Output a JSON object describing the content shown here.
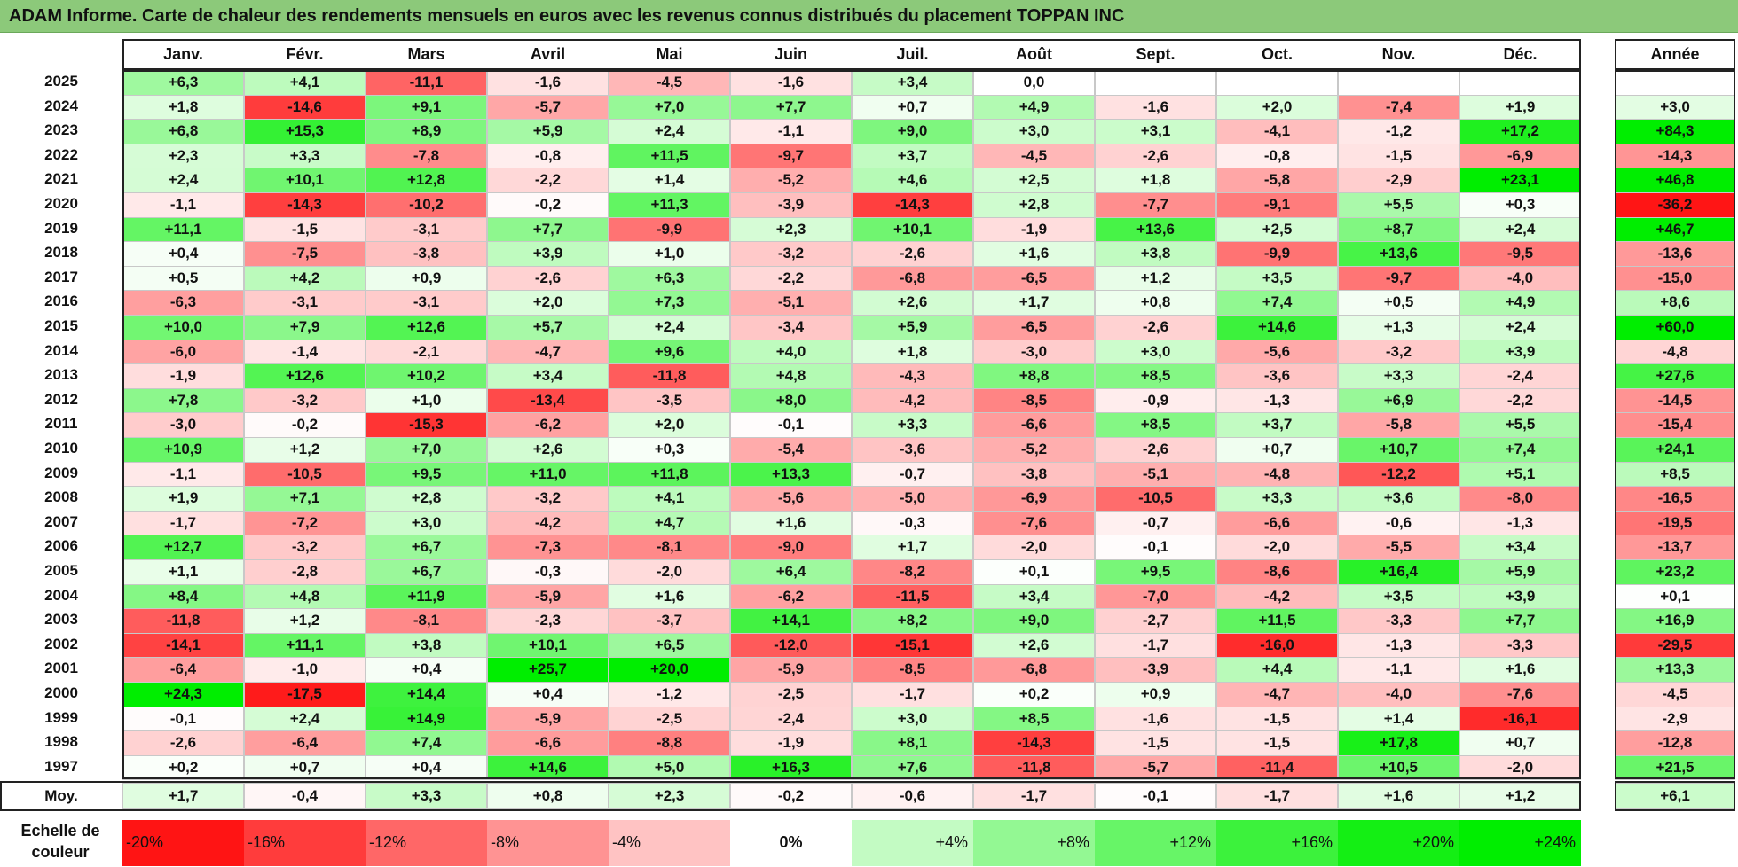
{
  "title": "ADAM Informe. Carte de chaleur des rendements mensuels en euros avec les revenus connus distribués du placement TOPPAN INC",
  "months": [
    "Janv.",
    "Févr.",
    "Mars",
    "Avril",
    "Mai",
    "Juin",
    "Juil.",
    "Août",
    "Sept.",
    "Oct.",
    "Nov.",
    "Déc."
  ],
  "year_header": "Année",
  "average_label": "Moy.",
  "scale_label": [
    "Echelle de",
    "couleur"
  ],
  "colors": {
    "negative": "#ff0000",
    "neutral": "#ffffff",
    "positive": "#00ee00",
    "title_bg": "#8cc97a"
  },
  "chart_data": {
    "type": "heatmap",
    "title": "ADAM Informe. Carte de chaleur des rendements mensuels en euros avec les revenus connus distribués du placement TOPPAN INC",
    "x": [
      "Janv.",
      "Févr.",
      "Mars",
      "Avril",
      "Mai",
      "Juin",
      "Juil.",
      "Août",
      "Sept.",
      "Oct.",
      "Nov.",
      "Déc."
    ],
    "rows": [
      {
        "year": "2025",
        "values": [
          "+6,3",
          "+4,1",
          "-11,1",
          "-1,6",
          "-4,5",
          "-1,6",
          "+3,4",
          "0,0",
          "",
          "",
          "",
          ""
        ],
        "annual": ""
      },
      {
        "year": "2024",
        "values": [
          "+1,8",
          "-14,6",
          "+9,1",
          "-5,7",
          "+7,0",
          "+7,7",
          "+0,7",
          "+4,9",
          "-1,6",
          "+2,0",
          "-7,4",
          "+1,9"
        ],
        "annual": "+3,0"
      },
      {
        "year": "2023",
        "values": [
          "+6,8",
          "+15,3",
          "+8,9",
          "+5,9",
          "+2,4",
          "-1,1",
          "+9,0",
          "+3,0",
          "+3,1",
          "-4,1",
          "-1,2",
          "+17,2"
        ],
        "annual": "+84,3"
      },
      {
        "year": "2022",
        "values": [
          "+2,3",
          "+3,3",
          "-7,8",
          "-0,8",
          "+11,5",
          "-9,7",
          "+3,7",
          "-4,5",
          "-2,6",
          "-0,8",
          "-1,5",
          "-6,9"
        ],
        "annual": "-14,3"
      },
      {
        "year": "2021",
        "values": [
          "+2,4",
          "+10,1",
          "+12,8",
          "-2,2",
          "+1,4",
          "-5,2",
          "+4,6",
          "+2,5",
          "+1,8",
          "-5,8",
          "-2,9",
          "+23,1"
        ],
        "annual": "+46,8"
      },
      {
        "year": "2020",
        "values": [
          "-1,1",
          "-14,3",
          "-10,2",
          "-0,2",
          "+11,3",
          "-3,9",
          "-14,3",
          "+2,8",
          "-7,7",
          "-9,1",
          "+5,5",
          "+0,3"
        ],
        "annual": "-36,2"
      },
      {
        "year": "2019",
        "values": [
          "+11,1",
          "-1,5",
          "-3,1",
          "+7,7",
          "-9,9",
          "+2,3",
          "+10,1",
          "-1,9",
          "+13,6",
          "+2,5",
          "+8,7",
          "+2,4"
        ],
        "annual": "+46,7"
      },
      {
        "year": "2018",
        "values": [
          "+0,4",
          "-7,5",
          "-3,8",
          "+3,9",
          "+1,0",
          "-3,2",
          "-2,6",
          "+1,6",
          "+3,8",
          "-9,9",
          "+13,6",
          "-9,5"
        ],
        "annual": "-13,6"
      },
      {
        "year": "2017",
        "values": [
          "+0,5",
          "+4,2",
          "+0,9",
          "-2,6",
          "+6,3",
          "-2,2",
          "-6,8",
          "-6,5",
          "+1,2",
          "+3,5",
          "-9,7",
          "-4,0"
        ],
        "annual": "-15,0"
      },
      {
        "year": "2016",
        "values": [
          "-6,3",
          "-3,1",
          "-3,1",
          "+2,0",
          "+7,3",
          "-5,1",
          "+2,6",
          "+1,7",
          "+0,8",
          "+7,4",
          "+0,5",
          "+4,9"
        ],
        "annual": "+8,6"
      },
      {
        "year": "2015",
        "values": [
          "+10,0",
          "+7,9",
          "+12,6",
          "+5,7",
          "+2,4",
          "-3,4",
          "+5,9",
          "-6,5",
          "-2,6",
          "+14,6",
          "+1,3",
          "+2,4"
        ],
        "annual": "+60,0"
      },
      {
        "year": "2014",
        "values": [
          "-6,0",
          "-1,4",
          "-2,1",
          "-4,7",
          "+9,6",
          "+4,0",
          "+1,8",
          "-3,0",
          "+3,0",
          "-5,6",
          "-3,2",
          "+3,9"
        ],
        "annual": "-4,8"
      },
      {
        "year": "2013",
        "values": [
          "-1,9",
          "+12,6",
          "+10,2",
          "+3,4",
          "-11,8",
          "+4,8",
          "-4,3",
          "+8,8",
          "+8,5",
          "-3,6",
          "+3,3",
          "-2,4"
        ],
        "annual": "+27,6"
      },
      {
        "year": "2012",
        "values": [
          "+7,8",
          "-3,2",
          "+1,0",
          "-13,4",
          "-3,5",
          "+8,0",
          "-4,2",
          "-8,5",
          "-0,9",
          "-1,3",
          "+6,9",
          "-2,2"
        ],
        "annual": "-14,5"
      },
      {
        "year": "2011",
        "values": [
          "-3,0",
          "-0,2",
          "-15,3",
          "-6,2",
          "+2,0",
          "-0,1",
          "+3,3",
          "-6,6",
          "+8,5",
          "+3,7",
          "-5,8",
          "+5,5"
        ],
        "annual": "-15,4"
      },
      {
        "year": "2010",
        "values": [
          "+10,9",
          "+1,2",
          "+7,0",
          "+2,6",
          "+0,3",
          "-5,4",
          "-3,6",
          "-5,2",
          "-2,6",
          "+0,7",
          "+10,7",
          "+7,4"
        ],
        "annual": "+24,1"
      },
      {
        "year": "2009",
        "values": [
          "-1,1",
          "-10,5",
          "+9,5",
          "+11,0",
          "+11,8",
          "+13,3",
          "-0,7",
          "-3,8",
          "-5,1",
          "-4,8",
          "-12,2",
          "+5,1"
        ],
        "annual": "+8,5"
      },
      {
        "year": "2008",
        "values": [
          "+1,9",
          "+7,1",
          "+2,8",
          "-3,2",
          "+4,1",
          "-5,6",
          "-5,0",
          "-6,9",
          "-10,5",
          "+3,3",
          "+3,6",
          "-8,0"
        ],
        "annual": "-16,5"
      },
      {
        "year": "2007",
        "values": [
          "-1,7",
          "-7,2",
          "+3,0",
          "-4,2",
          "+4,7",
          "+1,6",
          "-0,3",
          "-7,6",
          "-0,7",
          "-6,6",
          "-0,6",
          "-1,3"
        ],
        "annual": "-19,5"
      },
      {
        "year": "2006",
        "values": [
          "+12,7",
          "-3,2",
          "+6,7",
          "-7,3",
          "-8,1",
          "-9,0",
          "+1,7",
          "-2,0",
          "-0,1",
          "-2,0",
          "-5,5",
          "+3,4"
        ],
        "annual": "-13,7"
      },
      {
        "year": "2005",
        "values": [
          "+1,1",
          "-2,8",
          "+6,7",
          "-0,3",
          "-2,0",
          "+6,4",
          "-8,2",
          "+0,1",
          "+9,5",
          "-8,6",
          "+16,4",
          "+5,9"
        ],
        "annual": "+23,2"
      },
      {
        "year": "2004",
        "values": [
          "+8,4",
          "+4,8",
          "+11,9",
          "-5,9",
          "+1,6",
          "-6,2",
          "-11,5",
          "+3,4",
          "-7,0",
          "-4,2",
          "+3,5",
          "+3,9"
        ],
        "annual": "+0,1"
      },
      {
        "year": "2003",
        "values": [
          "-11,8",
          "+1,2",
          "-8,1",
          "-2,3",
          "-3,7",
          "+14,1",
          "+8,2",
          "+9,0",
          "-2,7",
          "+11,5",
          "-3,3",
          "+7,7"
        ],
        "annual": "+16,9"
      },
      {
        "year": "2002",
        "values": [
          "-14,1",
          "+11,1",
          "+3,8",
          "+10,1",
          "+6,5",
          "-12,0",
          "-15,1",
          "+2,6",
          "-1,7",
          "-16,0",
          "-1,3",
          "-3,3"
        ],
        "annual": "-29,5"
      },
      {
        "year": "2001",
        "values": [
          "-6,4",
          "-1,0",
          "+0,4",
          "+25,7",
          "+20,0",
          "-5,9",
          "-8,5",
          "-6,8",
          "-3,9",
          "+4,4",
          "-1,1",
          "+1,6"
        ],
        "annual": "+13,3"
      },
      {
        "year": "2000",
        "values": [
          "+24,3",
          "-17,5",
          "+14,4",
          "+0,4",
          "-1,2",
          "-2,5",
          "-1,7",
          "+0,2",
          "+0,9",
          "-4,7",
          "-4,0",
          "-7,6"
        ],
        "annual": "-4,5"
      },
      {
        "year": "1999",
        "values": [
          "-0,1",
          "+2,4",
          "+14,9",
          "-5,9",
          "-2,5",
          "-2,4",
          "+3,0",
          "+8,5",
          "-1,6",
          "-1,5",
          "+1,4",
          "-16,1"
        ],
        "annual": "-2,9"
      },
      {
        "year": "1998",
        "values": [
          "-2,6",
          "-6,4",
          "+7,4",
          "-6,6",
          "-8,8",
          "-1,9",
          "+8,1",
          "-14,3",
          "-1,5",
          "-1,5",
          "+17,8",
          "+0,7"
        ],
        "annual": "-12,8"
      },
      {
        "year": "1997",
        "values": [
          "+0,2",
          "+0,7",
          "+0,4",
          "+14,6",
          "+5,0",
          "+16,3",
          "+7,6",
          "-11,8",
          "-5,7",
          "-11,4",
          "+10,5",
          "-2,0"
        ],
        "annual": "+21,5"
      }
    ],
    "average": {
      "values": [
        "+1,7",
        "-0,4",
        "+3,3",
        "+0,8",
        "+2,3",
        "-0,2",
        "-0,6",
        "-1,7",
        "-0,1",
        "-1,7",
        "+1,6",
        "+1,2"
      ],
      "annual": "+6,1"
    },
    "color_scale": [
      "-20%",
      "-16%",
      "-12%",
      "-8%",
      "-4%",
      "0%",
      "+4%",
      "+8%",
      "+12%",
      "+16%",
      "+20%",
      "+24%"
    ]
  }
}
